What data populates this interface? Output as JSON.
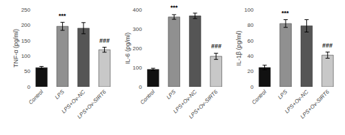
{
  "chart_data": [
    {
      "type": "bar",
      "ylabel": "TNF-α (pg/ml)",
      "categories": [
        "Control",
        "LPS",
        "LPS+Ov-NC",
        "LPS+Ov-SIRT6"
      ],
      "values": [
        62,
        196,
        190,
        120
      ],
      "errors": [
        4,
        13,
        18,
        8
      ],
      "colors": [
        "#111111",
        "#909090",
        "#555555",
        "#c8c8c8"
      ],
      "annotations": [
        null,
        "***",
        null,
        "###"
      ],
      "ylim": [
        0,
        250
      ],
      "yticks": [
        0,
        50,
        100,
        150,
        200,
        250
      ],
      "grid": false
    },
    {
      "type": "bar",
      "ylabel": "IL-6 (pg/ml)",
      "categories": [
        "Control",
        "LPS",
        "LPS+Ov-NC",
        "LPS+Ov-SIRT6"
      ],
      "values": [
        90,
        362,
        368,
        158
      ],
      "errors": [
        6,
        12,
        14,
        16
      ],
      "colors": [
        "#111111",
        "#909090",
        "#555555",
        "#c8c8c8"
      ],
      "annotations": [
        null,
        "***",
        null,
        "###"
      ],
      "ylim": [
        0,
        400
      ],
      "yticks": [
        0,
        100,
        200,
        300,
        400
      ],
      "grid": false
    },
    {
      "type": "bar",
      "ylabel": "IL-1β (pg/ml)",
      "categories": [
        "Control",
        "LPS",
        "LPS+Ov-NC",
        "LPS+Ov-SIRT6"
      ],
      "values": [
        25,
        82,
        79,
        41
      ],
      "errors": [
        3,
        5,
        8,
        4
      ],
      "colors": [
        "#111111",
        "#909090",
        "#555555",
        "#c8c8c8"
      ],
      "annotations": [
        null,
        "***",
        null,
        "###"
      ],
      "ylim": [
        0,
        100
      ],
      "yticks": [
        0,
        20,
        40,
        60,
        80,
        100
      ],
      "grid": false
    }
  ]
}
